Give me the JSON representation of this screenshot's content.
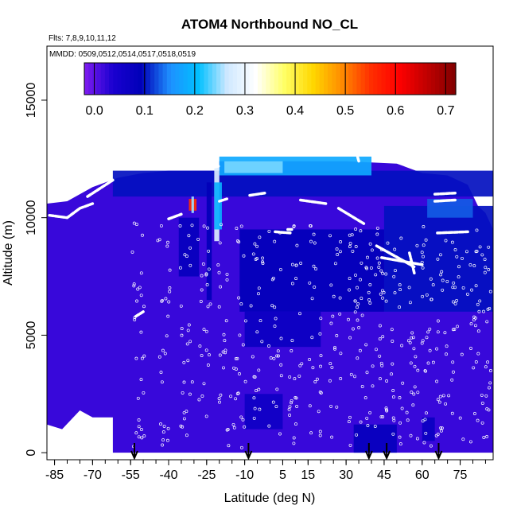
{
  "chart_data": {
    "type": "heatmap",
    "title": "ATOM4 Northbound NO_CL",
    "subtitle_flights": "Flts: 7,8,9,10,11,12",
    "subtitle_dates": "MMDD: 0509,0512,0514,0517,0518,0519",
    "xlabel": "Latitude (deg N)",
    "ylabel": "Altitude (m)",
    "xlim": [
      -88,
      88
    ],
    "ylim": [
      -300,
      17300
    ],
    "x_ticks": [
      -85,
      -70,
      -55,
      -40,
      -25,
      -10,
      5,
      15,
      30,
      45,
      60,
      75
    ],
    "x_tick_labels": [
      "-85",
      "-70",
      "-55",
      "-40",
      "-25",
      "-10",
      "5",
      "15",
      "30",
      "45",
      "60",
      "75"
    ],
    "y_ticks": [
      0,
      5000,
      10000,
      15000
    ],
    "y_tick_labels": [
      "0",
      "5000",
      "10000",
      "15000"
    ],
    "colorbar": {
      "min": -0.02,
      "max": 0.72,
      "ticks": [
        0.0,
        0.1,
        0.2,
        0.3,
        0.4,
        0.5,
        0.6,
        0.7
      ],
      "tick_labels": [
        "0.0",
        "0.1",
        "0.2",
        "0.3",
        "0.4",
        "0.5",
        "0.6",
        "0.7"
      ],
      "colors": [
        "#7f1cf0",
        "#1a00d0",
        "#0000b8",
        "#1e90ff",
        "#00c0ff",
        "#cfe8ff",
        "#ffffff",
        "#ffff66",
        "#ffd700",
        "#ff8c00",
        "#ff3000",
        "#ff0000",
        "#c00000",
        "#800000"
      ]
    },
    "background_value": 0.02,
    "domain_boundary": [
      [
        -88,
        1200
      ],
      [
        -82,
        1000
      ],
      [
        -75,
        1800
      ],
      [
        -70,
        1500
      ],
      [
        -62,
        1500
      ],
      [
        -62,
        0
      ],
      [
        88,
        0
      ],
      [
        88,
        9500
      ],
      [
        85,
        10200
      ],
      [
        82,
        10500
      ],
      [
        78,
        11400
      ],
      [
        70,
        11800
      ],
      [
        60,
        11900
      ],
      [
        50,
        12300
      ],
      [
        30,
        12400
      ],
      [
        10,
        12400
      ],
      [
        -20,
        12400
      ],
      [
        -20,
        12000
      ],
      [
        -40,
        12000
      ],
      [
        -50,
        11900
      ],
      [
        -60,
        11700
      ],
      [
        -70,
        11300
      ],
      [
        -80,
        10700
      ],
      [
        -88,
        10600
      ]
    ],
    "patches": [
      {
        "lat": [
          -62,
          88
        ],
        "alt": [
          10900,
          12000
        ],
        "value": 0.1
      },
      {
        "lat": [
          -20,
          40
        ],
        "alt": [
          11800,
          12600
        ],
        "value": 0.18
      },
      {
        "lat": [
          -18,
          5
        ],
        "alt": [
          11900,
          12400
        ],
        "value": 0.24
      },
      {
        "lat": [
          -22,
          -20
        ],
        "alt": [
          9000,
          12200
        ],
        "value": 0.28
      },
      {
        "lat": [
          -25,
          -23
        ],
        "alt": [
          6500,
          11500
        ],
        "value": 0.09
      },
      {
        "lat": [
          -22,
          -19
        ],
        "alt": [
          9500,
          11500
        ],
        "value": 0.19
      },
      {
        "lat": [
          -36,
          -28
        ],
        "alt": [
          7500,
          10000
        ],
        "value": 0.08
      },
      {
        "lat": [
          -12,
          45
        ],
        "alt": [
          6000,
          9500
        ],
        "value": 0.09
      },
      {
        "lat": [
          -10,
          20
        ],
        "alt": [
          4500,
          6000
        ],
        "value": 0.07
      },
      {
        "lat": [
          45,
          88
        ],
        "alt": [
          6000,
          10500
        ],
        "value": 0.1
      },
      {
        "lat": [
          62,
          80
        ],
        "alt": [
          10000,
          10800
        ],
        "value": 0.13
      },
      {
        "lat": [
          33,
          50
        ],
        "alt": [
          0,
          1200
        ],
        "value": 0.08
      },
      {
        "lat": [
          -10,
          5
        ],
        "alt": [
          1000,
          2500
        ],
        "value": 0.06
      },
      {
        "lat": [
          60,
          65
        ],
        "alt": [
          500,
          1500
        ],
        "value": 0.07
      },
      {
        "lat": [
          -32,
          -29
        ],
        "alt": [
          10300,
          10800
        ],
        "value": 0.55
      },
      {
        "lat": [
          -31,
          -30
        ],
        "alt": [
          10200,
          10900
        ],
        "value": 0.25
      }
    ],
    "flight_tracks": [
      {
        "lat": [
          -87,
          -80,
          -75,
          -70
        ],
        "alt": [
          10100,
          10000,
          10400,
          10600
        ]
      },
      {
        "lat": [
          -72,
          -62
        ],
        "alt": [
          10900,
          11600
        ]
      },
      {
        "lat": [
          -40,
          -35
        ],
        "alt": [
          9950,
          10150
        ]
      },
      {
        "lat": [
          -20,
          -17
        ],
        "alt": [
          10700,
          10800
        ]
      },
      {
        "lat": [
          -8,
          -2
        ],
        "alt": [
          10950,
          11050
        ]
      },
      {
        "lat": [
          2,
          8
        ],
        "alt": [
          9400,
          9350
        ]
      },
      {
        "lat": [
          12,
          22
        ],
        "alt": [
          10750,
          10600
        ]
      },
      {
        "lat": [
          27,
          37
        ],
        "alt": [
          10400,
          9750
        ]
      },
      {
        "lat": [
          42,
          57
        ],
        "alt": [
          8800,
          7900
        ]
      },
      {
        "lat": [
          44,
          60
        ],
        "alt": [
          8300,
          8000
        ]
      },
      {
        "lat": [
          55,
          57
        ],
        "alt": [
          8500,
          7600
        ]
      },
      {
        "lat": [
          65,
          73
        ],
        "alt": [
          11000,
          11050
        ]
      },
      {
        "lat": [
          65,
          73
        ],
        "alt": [
          10700,
          10750
        ]
      },
      {
        "lat": [
          66,
          78
        ],
        "alt": [
          9350,
          9400
        ]
      },
      {
        "lat": [
          -53,
          -50
        ],
        "alt": [
          5800,
          6000
        ]
      },
      {
        "lat": [
          -24,
          -20
        ],
        "alt": [
          12100,
          12200
        ]
      },
      {
        "lat": [
          7,
          9
        ],
        "alt": [
          9500,
          9500
        ]
      },
      {
        "lat": [
          34,
          35
        ],
        "alt": [
          12800,
          12400
        ]
      }
    ],
    "arrows_lat": [
      -53.5,
      -8.5,
      39,
      46,
      66.5
    ]
  }
}
